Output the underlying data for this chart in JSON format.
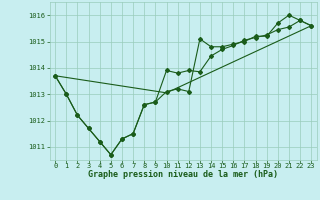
{
  "title": "Graphe pression niveau de la mer (hPa)",
  "background_color": "#c8eef0",
  "grid_color": "#99ccbb",
  "line_color": "#1a5c1a",
  "xlim": [
    -0.5,
    23.5
  ],
  "ylim": [
    1010.5,
    1016.5
  ],
  "yticks": [
    1011,
    1012,
    1013,
    1014,
    1015,
    1016
  ],
  "xticks": [
    0,
    1,
    2,
    3,
    4,
    5,
    6,
    7,
    8,
    9,
    10,
    11,
    12,
    13,
    14,
    15,
    16,
    17,
    18,
    19,
    20,
    21,
    22,
    23
  ],
  "series1": [
    1013.7,
    1013.0,
    1012.2,
    1011.7,
    1011.2,
    1010.7,
    1011.3,
    1011.5,
    1012.6,
    1012.7,
    1013.1,
    1013.2,
    1013.1,
    1015.1,
    1014.8,
    1014.8,
    1014.9,
    1015.0,
    1015.2,
    1015.2,
    1015.7,
    1016.0,
    1015.8,
    1015.6
  ],
  "series2": [
    1013.7,
    1013.0,
    1012.2,
    1011.7,
    1011.2,
    1010.7,
    1011.3,
    1011.5,
    1012.6,
    1012.7,
    1013.9,
    1013.8,
    1013.9,
    1013.85,
    1014.45,
    1014.7,
    1014.85,
    1015.05,
    1015.15,
    1015.25,
    1015.45,
    1015.55,
    1015.8,
    1015.6
  ],
  "series3_x": [
    0,
    10,
    23
  ],
  "series3_y": [
    1013.7,
    1013.05,
    1015.6
  ],
  "title_fontsize": 6.0,
  "tick_fontsize": 5.0,
  "figsize": [
    3.2,
    2.0
  ],
  "dpi": 100
}
